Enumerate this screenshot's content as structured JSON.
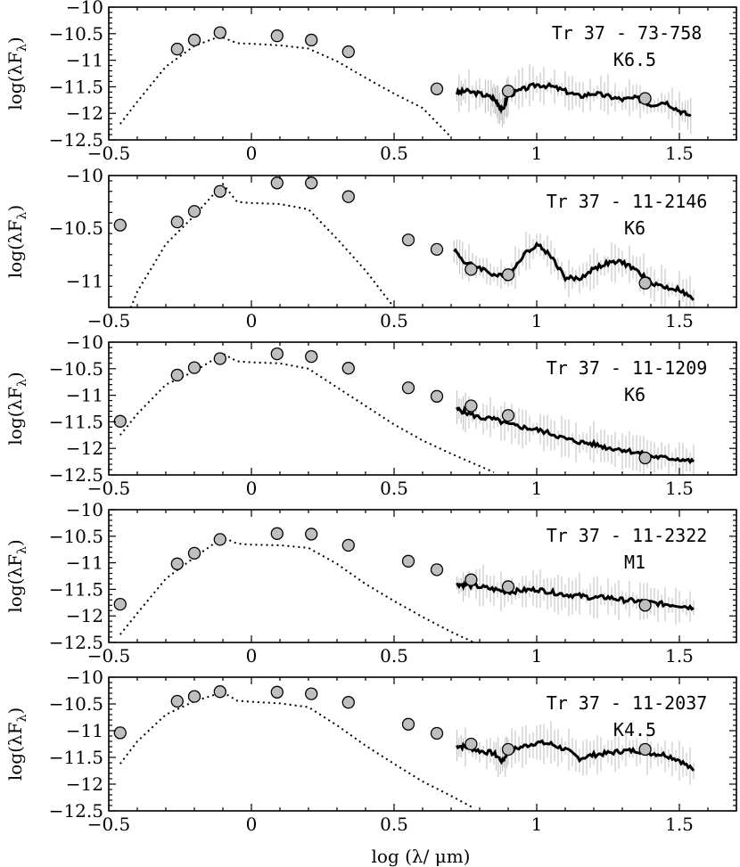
{
  "figure": {
    "xlabel": "log (λ/ μm)",
    "ylabel": "log(λF",
    "ylabel_sub": "λ",
    "ylabel_close": ")"
  },
  "chart_data": [
    {
      "type": "scatter",
      "title": "",
      "xlim": [
        -0.5,
        1.7
      ],
      "ylim": [
        -12.5,
        -10
      ],
      "xticks": [
        -0.5,
        0,
        0.5,
        1,
        1.5
      ],
      "xtick_labels": [
        "-0.5",
        "0",
        "0.5",
        "1",
        "1.5"
      ],
      "yticks": [
        -10,
        -10.5,
        -11,
        -11.5,
        -12,
        -12.5
      ],
      "ytick_labels": [
        "-10",
        "-10.5",
        "-11",
        "-11.5",
        "-12",
        "-12.5"
      ],
      "annotation": [
        "Tr 37 - 73-758",
        "K6.5"
      ],
      "photometry": {
        "x": [
          -0.26,
          -0.2,
          -0.11,
          0.09,
          0.21,
          0.34,
          0.65,
          0.9,
          1.38
        ],
        "y": [
          -10.79,
          -10.62,
          -10.48,
          -10.54,
          -10.62,
          -10.84,
          -11.54,
          -11.58,
          -11.72
        ]
      },
      "model": {
        "style": "dotted",
        "x": [
          -0.46,
          -0.4,
          -0.3,
          -0.2,
          -0.11,
          -0.05,
          0.0,
          0.1,
          0.2,
          0.3,
          0.4,
          0.5,
          0.6,
          0.7
        ],
        "y": [
          -12.2,
          -11.78,
          -11.12,
          -10.73,
          -10.55,
          -10.68,
          -10.69,
          -10.72,
          -10.78,
          -11.02,
          -11.33,
          -11.63,
          -11.9,
          -12.45
        ]
      },
      "spectrum": {
        "x": [
          0.72,
          0.75,
          0.8,
          0.84,
          0.86,
          0.88,
          0.9,
          0.95,
          1.0,
          1.05,
          1.1,
          1.15,
          1.2,
          1.25,
          1.3,
          1.35,
          1.4,
          1.45,
          1.5,
          1.54
        ],
        "y": [
          -11.62,
          -11.58,
          -11.63,
          -11.7,
          -11.78,
          -11.95,
          -11.66,
          -11.55,
          -11.46,
          -11.49,
          -11.58,
          -11.68,
          -11.62,
          -11.68,
          -11.74,
          -11.71,
          -11.84,
          -11.78,
          -11.95,
          -12.05
        ]
      }
    },
    {
      "type": "scatter",
      "title": "",
      "xlim": [
        -0.5,
        1.7
      ],
      "ylim": [
        -11.25,
        -10
      ],
      "xticks": [
        -0.5,
        0,
        0.5,
        1,
        1.5
      ],
      "xtick_labels": [
        "-0.5",
        "0",
        "0.5",
        "1",
        "1.5"
      ],
      "yticks": [
        -10,
        -10.5,
        -11
      ],
      "ytick_labels": [
        "-10",
        "-10.5",
        "-11"
      ],
      "annotation": [
        "Tr 37 - 11-2146",
        "K6"
      ],
      "photometry": {
        "x": [
          -0.46,
          -0.26,
          -0.2,
          -0.11,
          0.09,
          0.21,
          0.34,
          0.55,
          0.65,
          0.77,
          0.9,
          1.38
        ],
        "y": [
          -10.47,
          -10.44,
          -10.34,
          -10.15,
          -10.07,
          -10.07,
          -10.2,
          -10.61,
          -10.7,
          -10.89,
          -10.94,
          -11.02
        ]
      },
      "model": {
        "style": "dotted",
        "x": [
          -0.43,
          -0.4,
          -0.3,
          -0.2,
          -0.1,
          -0.05,
          0.0,
          0.1,
          0.2,
          0.3,
          0.4,
          0.5
        ],
        "y": [
          -11.3,
          -11.1,
          -10.65,
          -10.38,
          -10.08,
          -10.25,
          -10.26,
          -10.27,
          -10.32,
          -10.6,
          -10.9,
          -11.25
        ]
      },
      "spectrum": {
        "x": [
          0.71,
          0.75,
          0.8,
          0.85,
          0.9,
          0.95,
          1.0,
          1.05,
          1.1,
          1.15,
          1.2,
          1.25,
          1.3,
          1.35,
          1.4,
          1.45,
          1.5,
          1.55
        ],
        "y": [
          -10.7,
          -10.83,
          -10.87,
          -10.94,
          -10.97,
          -10.76,
          -10.65,
          -10.76,
          -10.97,
          -10.98,
          -10.88,
          -10.83,
          -10.82,
          -10.9,
          -11.01,
          -11.06,
          -11.08,
          -11.18
        ]
      }
    },
    {
      "type": "scatter",
      "title": "",
      "xlim": [
        -0.5,
        1.7
      ],
      "ylim": [
        -12.5,
        -10
      ],
      "xticks": [
        -0.5,
        0,
        0.5,
        1,
        1.5
      ],
      "xtick_labels": [
        "-0.5",
        "0",
        "0.5",
        "1",
        "1.5"
      ],
      "yticks": [
        -10,
        -10.5,
        -11,
        -11.5,
        -12,
        -12.5
      ],
      "ytick_labels": [
        "-10",
        "-10.5",
        "-11",
        "-11.5",
        "-12",
        "-12.5"
      ],
      "annotation": [
        "Tr 37 - 11-1209",
        "K6"
      ],
      "photometry": {
        "x": [
          -0.46,
          -0.26,
          -0.2,
          -0.11,
          0.09,
          0.21,
          0.34,
          0.55,
          0.65,
          0.77,
          0.9,
          1.38
        ],
        "y": [
          -11.49,
          -10.62,
          -10.48,
          -10.31,
          -10.22,
          -10.27,
          -10.49,
          -10.86,
          -11.02,
          -11.2,
          -11.38,
          -12.18
        ]
      },
      "model": {
        "style": "dotted",
        "x": [
          -0.46,
          -0.4,
          -0.3,
          -0.2,
          -0.1,
          -0.05,
          0.0,
          0.1,
          0.2,
          0.3,
          0.4,
          0.5,
          0.6,
          0.7,
          0.85
        ],
        "y": [
          -11.75,
          -11.35,
          -10.8,
          -10.55,
          -10.22,
          -10.36,
          -10.38,
          -10.4,
          -10.5,
          -10.85,
          -11.2,
          -11.55,
          -11.85,
          -12.1,
          -12.45
        ]
      },
      "spectrum": {
        "x": [
          0.72,
          0.75,
          0.8,
          0.85,
          0.9,
          0.95,
          1.0,
          1.05,
          1.1,
          1.15,
          1.2,
          1.25,
          1.3,
          1.35,
          1.4,
          1.45,
          1.5,
          1.55
        ],
        "y": [
          -11.26,
          -11.32,
          -11.42,
          -11.45,
          -11.55,
          -11.6,
          -11.65,
          -11.72,
          -11.82,
          -11.88,
          -11.92,
          -11.99,
          -12.02,
          -12.08,
          -12.15,
          -12.18,
          -12.2,
          -12.25
        ]
      }
    },
    {
      "type": "scatter",
      "title": "",
      "xlim": [
        -0.5,
        1.7
      ],
      "ylim": [
        -12.5,
        -10
      ],
      "xticks": [
        -0.5,
        0,
        0.5,
        1,
        1.5
      ],
      "xtick_labels": [
        "-0.5",
        "0",
        "0.5",
        "1",
        "1.5"
      ],
      "yticks": [
        -10,
        -10.5,
        -11,
        -11.5,
        -12,
        -12.5
      ],
      "ytick_labels": [
        "-10",
        "-10.5",
        "-11",
        "-11.5",
        "-12",
        "-12.5"
      ],
      "annotation": [
        "Tr 37 - 11-2322",
        "M1"
      ],
      "photometry": {
        "x": [
          -0.46,
          -0.26,
          -0.2,
          -0.11,
          0.09,
          0.21,
          0.34,
          0.55,
          0.65,
          0.77,
          0.9,
          1.38
        ],
        "y": [
          -11.78,
          -11.02,
          -10.82,
          -10.56,
          -10.45,
          -10.46,
          -10.67,
          -10.97,
          -11.13,
          -11.32,
          -11.45,
          -11.8
        ]
      },
      "model": {
        "style": "dotted",
        "x": [
          -0.46,
          -0.4,
          -0.3,
          -0.2,
          -0.1,
          -0.05,
          0.0,
          0.1,
          0.2,
          0.3,
          0.4,
          0.5,
          0.6,
          0.7,
          0.78
        ],
        "y": [
          -12.35,
          -11.95,
          -11.3,
          -10.9,
          -10.52,
          -10.64,
          -10.66,
          -10.67,
          -10.72,
          -11.02,
          -11.4,
          -11.72,
          -12.02,
          -12.3,
          -12.5
        ]
      },
      "spectrum": {
        "x": [
          0.72,
          0.75,
          0.8,
          0.85,
          0.9,
          0.95,
          1.0,
          1.05,
          1.1,
          1.15,
          1.2,
          1.25,
          1.3,
          1.35,
          1.4,
          1.45,
          1.5,
          1.55
        ],
        "y": [
          -11.4,
          -11.42,
          -11.45,
          -11.5,
          -11.55,
          -11.52,
          -11.5,
          -11.55,
          -11.6,
          -11.62,
          -11.66,
          -11.65,
          -11.7,
          -11.72,
          -11.75,
          -11.78,
          -11.8,
          -11.85
        ]
      }
    },
    {
      "type": "scatter",
      "title": "",
      "xlim": [
        -0.5,
        1.7
      ],
      "ylim": [
        -12.5,
        -10
      ],
      "xticks": [
        -0.5,
        0,
        0.5,
        1,
        1.5
      ],
      "xtick_labels": [
        "-0.5",
        "0",
        "0.5",
        "1",
        "1.5"
      ],
      "yticks": [
        -10,
        -10.5,
        -11,
        -11.5,
        -12,
        -12.5
      ],
      "ytick_labels": [
        "-10",
        "-10.5",
        "-11",
        "-11.5",
        "-12",
        "-12.5"
      ],
      "annotation": [
        "Tr 37 - 11-2037",
        "K4.5"
      ],
      "photometry": {
        "x": [
          -0.46,
          -0.26,
          -0.2,
          -0.11,
          0.09,
          0.21,
          0.34,
          0.55,
          0.65,
          0.77,
          0.9,
          1.38
        ],
        "y": [
          -11.04,
          -10.45,
          -10.36,
          -10.27,
          -10.28,
          -10.31,
          -10.47,
          -10.88,
          -11.05,
          -11.25,
          -11.35,
          -11.35
        ]
      },
      "model": {
        "style": "dotted",
        "x": [
          -0.46,
          -0.4,
          -0.3,
          -0.2,
          -0.1,
          -0.05,
          0.0,
          0.1,
          0.2,
          0.3,
          0.4,
          0.5,
          0.6,
          0.7,
          0.78
        ],
        "y": [
          -11.62,
          -11.2,
          -10.7,
          -10.45,
          -10.28,
          -10.44,
          -10.46,
          -10.49,
          -10.56,
          -10.9,
          -11.28,
          -11.62,
          -11.95,
          -12.22,
          -12.45
        ]
      },
      "spectrum": {
        "x": [
          0.72,
          0.75,
          0.8,
          0.85,
          0.88,
          0.9,
          0.95,
          1.0,
          1.05,
          1.1,
          1.15,
          1.2,
          1.25,
          1.3,
          1.35,
          1.4,
          1.45,
          1.5,
          1.55
        ],
        "y": [
          -11.28,
          -11.3,
          -11.38,
          -11.42,
          -11.58,
          -11.38,
          -11.3,
          -11.22,
          -11.25,
          -11.35,
          -11.52,
          -11.45,
          -11.42,
          -11.38,
          -11.37,
          -11.42,
          -11.45,
          -11.55,
          -11.75
        ]
      }
    }
  ]
}
